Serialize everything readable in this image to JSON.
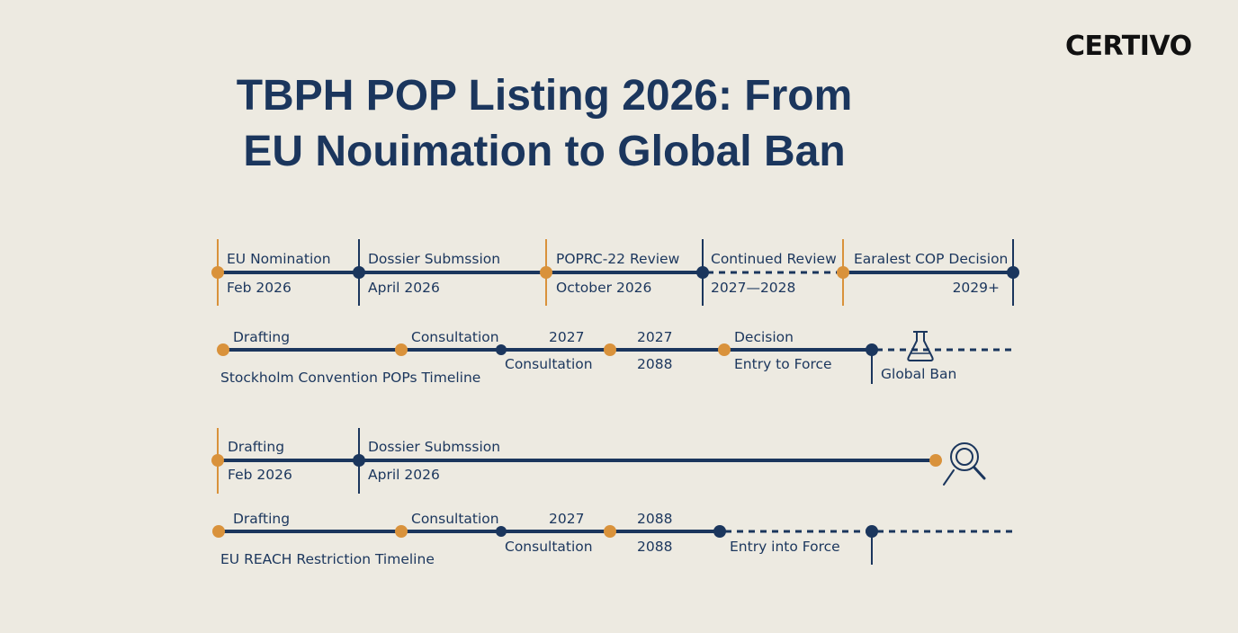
{
  "brand": {
    "logo_text": "CERTIVO"
  },
  "title": {
    "line1": "TBPH POP Listing 2026: From",
    "line2": "EU Nouimation to Global Ban"
  },
  "colors": {
    "navy": "#1b365d",
    "orange": "#d9923b",
    "background": "#edeae1"
  },
  "icons": [
    "flask-icon",
    "magnifier-icon"
  ],
  "rows": [
    {
      "texts": [
        {
          "name": "eu-nomination-label",
          "value": "EU Nomination"
        },
        {
          "name": "eu-nomination-date",
          "value": "Feb 2026"
        },
        {
          "name": "dossier-submission-label",
          "value": "Dossier Submssion"
        },
        {
          "name": "dossier-submission-date",
          "value": "April 2026"
        },
        {
          "name": "poprc-review-label",
          "value": "POPRC-22 Review"
        },
        {
          "name": "poprc-review-date",
          "value": "October 2026"
        },
        {
          "name": "continued-review-label",
          "value": "Continued Review"
        },
        {
          "name": "continued-review-date",
          "value": "2027—2028"
        },
        {
          "name": "cop-decision-label",
          "value": "Earalest COP Decision"
        },
        {
          "name": "cop-decision-date",
          "value": "2029+"
        }
      ]
    },
    {
      "texts": [
        {
          "name": "drafting-label",
          "value": "Drafting"
        },
        {
          "name": "consultation-label",
          "value": "Consultation"
        },
        {
          "name": "year-label-a",
          "value": "2027"
        },
        {
          "name": "consultation-sub-label",
          "value": "Consultation"
        },
        {
          "name": "year-label-b",
          "value": "2027"
        },
        {
          "name": "year-label-c",
          "value": "2088"
        },
        {
          "name": "decision-label",
          "value": "Decision"
        },
        {
          "name": "entry-to-force-label",
          "value": "Entry to Force"
        },
        {
          "name": "global-ban-label",
          "value": "Global Ban"
        },
        {
          "name": "timeline-caption",
          "value": "Stockholm Convention POPs Timeline"
        }
      ]
    },
    {
      "texts": [
        {
          "name": "drafting-label",
          "value": "Drafting"
        },
        {
          "name": "drafting-date",
          "value": "Feb 2026"
        },
        {
          "name": "dossier-submission-label",
          "value": "Dossier Submssion"
        },
        {
          "name": "dossier-submission-date",
          "value": "April 2026"
        }
      ]
    },
    {
      "texts": [
        {
          "name": "drafting-label",
          "value": "Drafting"
        },
        {
          "name": "consultation-label",
          "value": "Consultation"
        },
        {
          "name": "year-label-a",
          "value": "2027"
        },
        {
          "name": "consultation-sub-label",
          "value": "Consultation"
        },
        {
          "name": "year-label-b",
          "value": "2088"
        },
        {
          "name": "year-label-c",
          "value": "2088"
        },
        {
          "name": "entry-into-force-label",
          "value": "Entry into Force"
        },
        {
          "name": "timeline-caption",
          "value": "EU REACH Restriction Timeline"
        }
      ]
    }
  ]
}
